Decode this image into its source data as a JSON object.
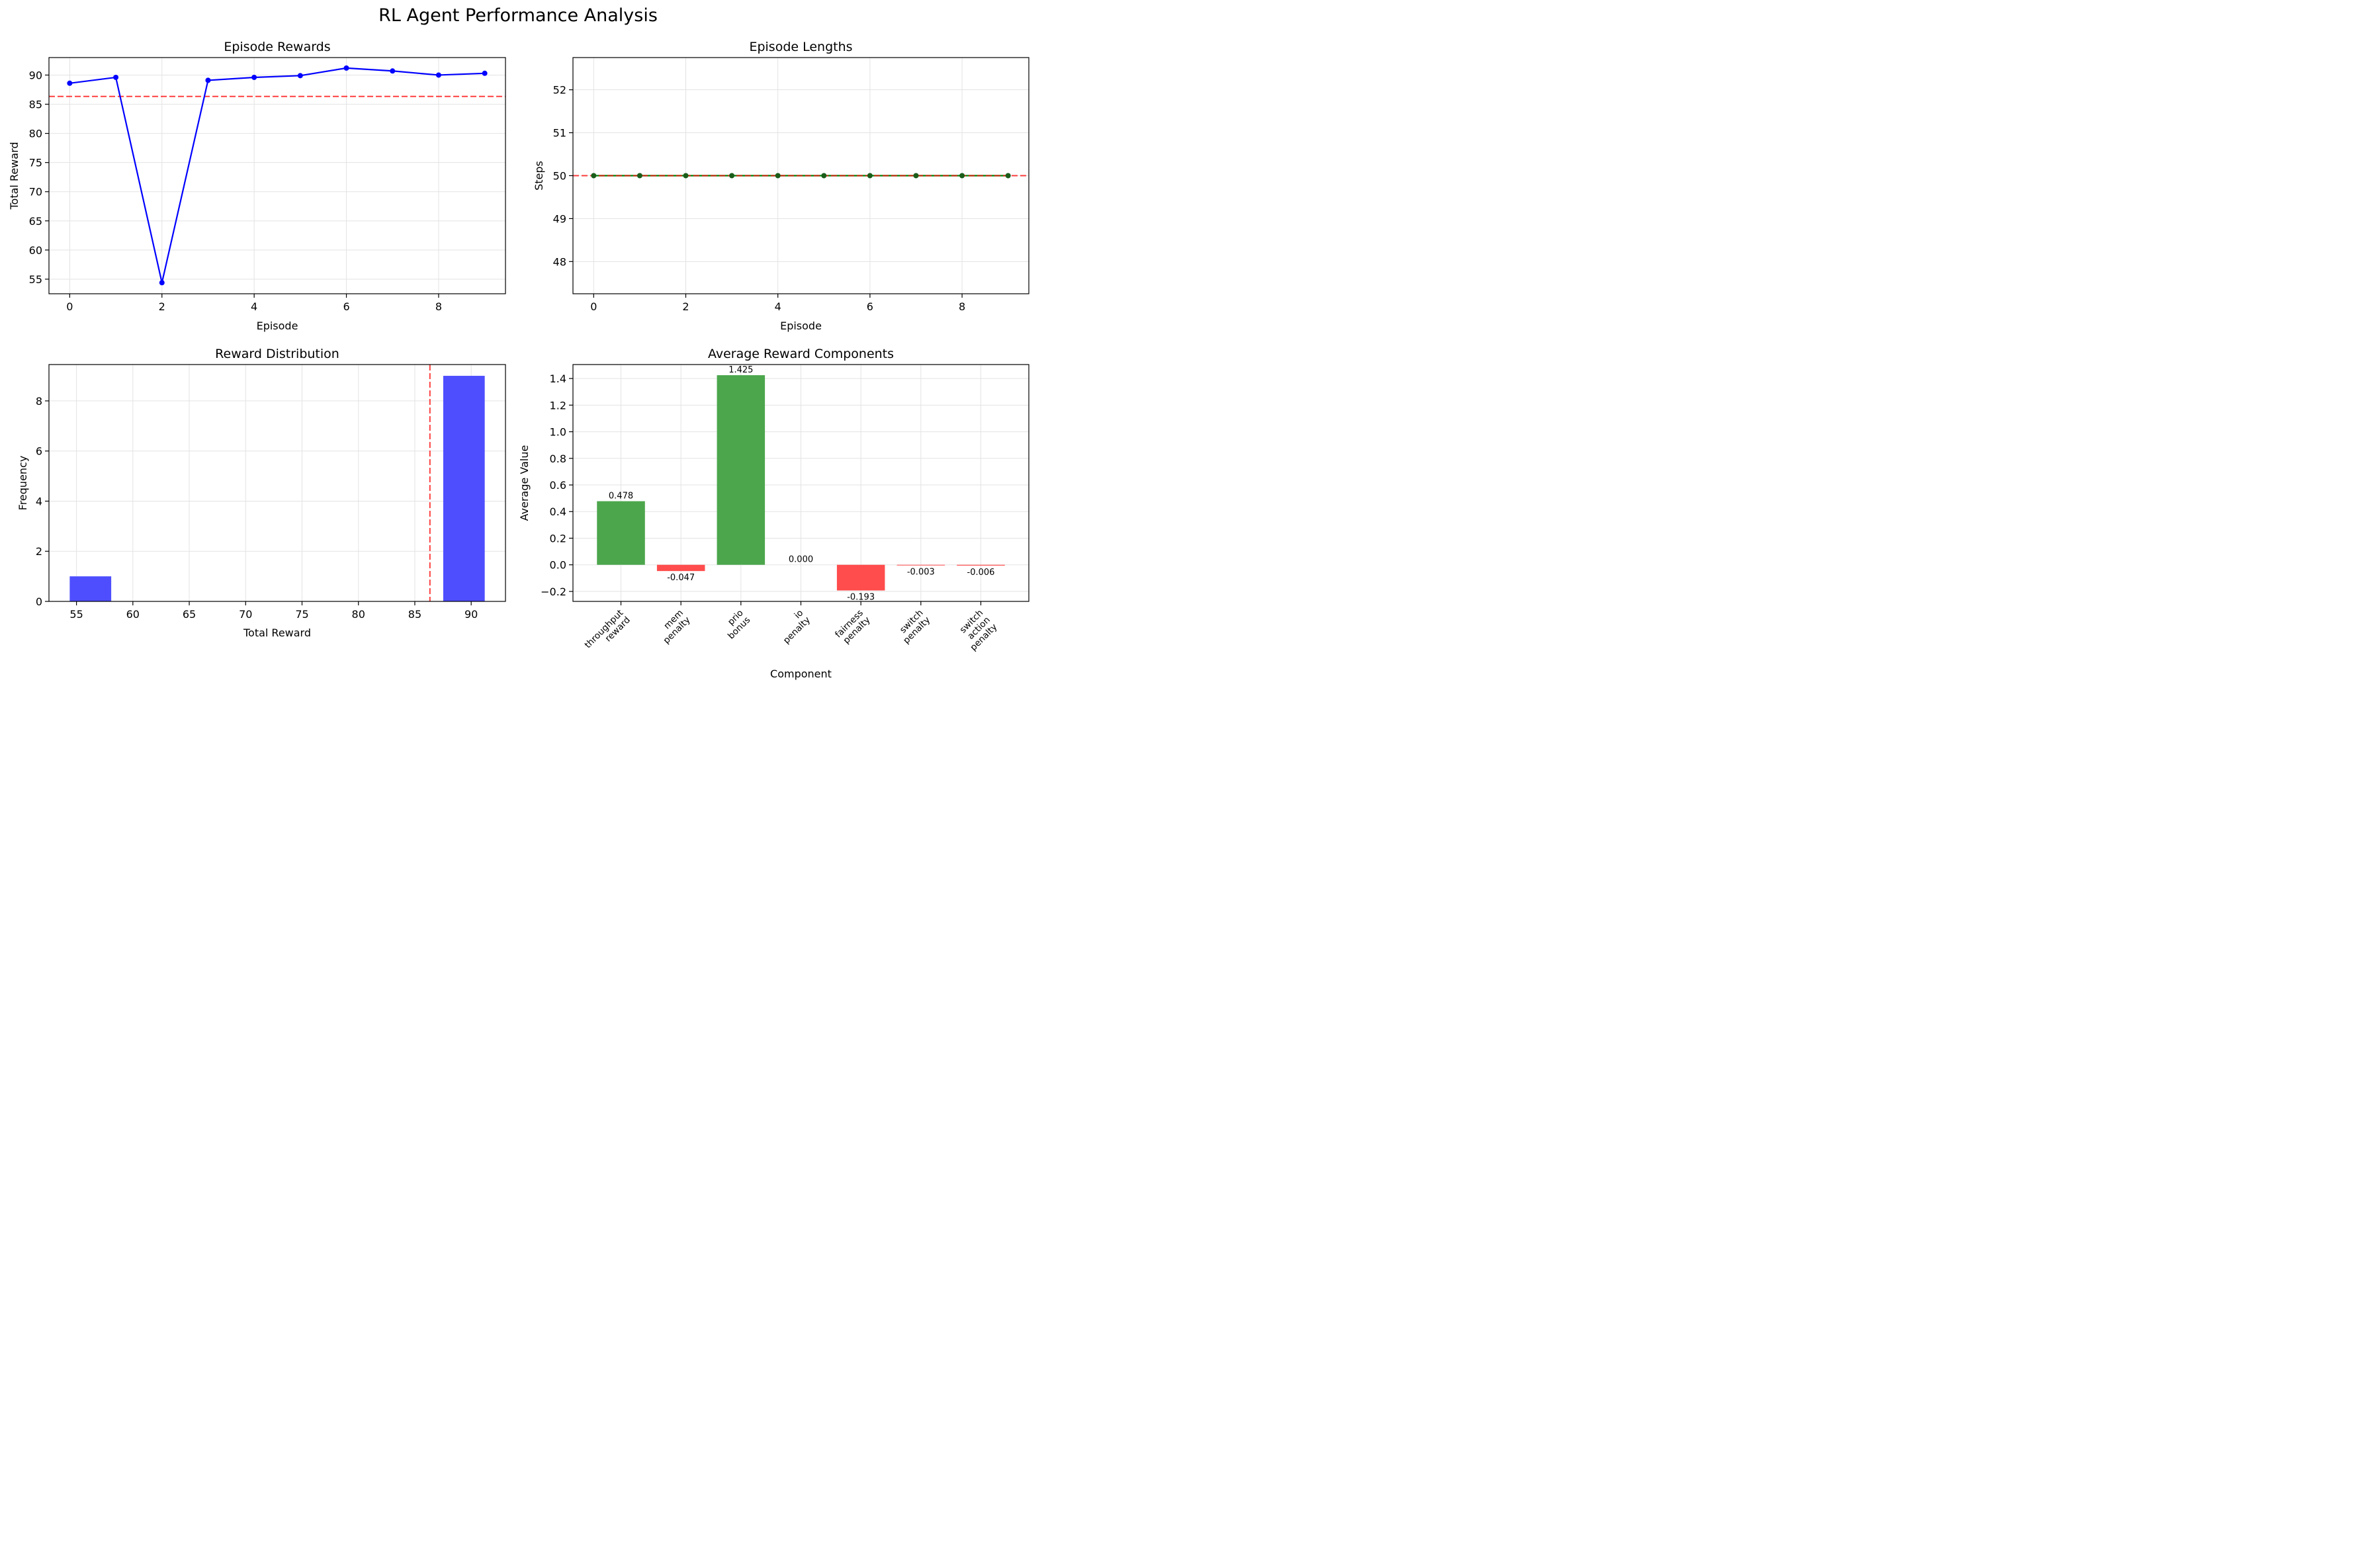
{
  "suptitle": "RL Agent Performance Analysis",
  "colors": {
    "rewards_line": "#0000ff",
    "reference_line": "#ff0000",
    "lengths_line": "#008000",
    "lengths_marker": "#1a5d1a",
    "hist_bar": "#4a4aff",
    "positive_bar": "#4ca64c",
    "negative_bar": "#ff4c4c",
    "grid": "#e3e3e3"
  },
  "chart_data": [
    {
      "type": "line",
      "title": "Episode Rewards",
      "xlabel": "Episode",
      "ylabel": "Total Reward",
      "x": [
        0,
        1,
        2,
        3,
        4,
        5,
        6,
        7,
        8,
        9
      ],
      "y": [
        88.6,
        89.6,
        54.4,
        89.1,
        89.6,
        89.9,
        91.2,
        90.7,
        90.0,
        90.3
      ],
      "reference_line": {
        "y": 86.34,
        "style": "dashed"
      },
      "xlim": [
        -0.45,
        9.45
      ],
      "ylim": [
        52.5,
        93.0
      ],
      "xticks": [
        0,
        2,
        4,
        6,
        8
      ],
      "yticks": [
        55,
        60,
        65,
        70,
        75,
        80,
        85,
        90
      ],
      "grid": true
    },
    {
      "type": "line",
      "title": "Episode Lengths",
      "xlabel": "Episode",
      "ylabel": "Steps",
      "x": [
        0,
        1,
        2,
        3,
        4,
        5,
        6,
        7,
        8,
        9
      ],
      "y": [
        50,
        50,
        50,
        50,
        50,
        50,
        50,
        50,
        50,
        50
      ],
      "reference_line": {
        "y": 50,
        "style": "dashed"
      },
      "xlim": [
        -0.45,
        9.45
      ],
      "ylim": [
        47.25,
        52.75
      ],
      "xticks": [
        0,
        2,
        4,
        6,
        8
      ],
      "yticks": [
        48,
        49,
        50,
        51,
        52
      ],
      "grid": true
    },
    {
      "type": "bar",
      "title": "Reward Distribution",
      "xlabel": "Total Reward",
      "ylabel": "Frequency",
      "bins": [
        [
          54.4,
          58.08
        ],
        [
          87.52,
          91.2
        ]
      ],
      "values": [
        1,
        9
      ],
      "reference_line": {
        "x": 86.34,
        "style": "dashed"
      },
      "xlim": [
        52.56,
        93.04
      ],
      "ylim": [
        0,
        9.45
      ],
      "xticks": [
        55,
        60,
        65,
        70,
        75,
        80,
        85,
        90
      ],
      "yticks": [
        0,
        2,
        4,
        6,
        8
      ],
      "grid": true
    },
    {
      "type": "bar",
      "title": "Average Reward Components",
      "xlabel": "Component",
      "ylabel": "Average Value",
      "categories": [
        "throughput\nreward",
        "mem\npenalty",
        "prio\nbonus",
        "io\npenalty",
        "fairness\npenalty",
        "switch\npenalty",
        "switch\naction\npenalty"
      ],
      "values": [
        0.478,
        -0.047,
        1.425,
        0.0,
        -0.193,
        -0.003,
        -0.006
      ],
      "data_labels": [
        "0.478",
        "-0.047",
        "1.425",
        "0.000",
        "-0.193",
        "-0.003",
        "-0.006"
      ],
      "xlim": [
        -0.8,
        6.8
      ],
      "ylim": [
        -0.275,
        1.505
      ],
      "yticks": [
        -0.2,
        0.0,
        0.2,
        0.4,
        0.6,
        0.8,
        1.0,
        1.2,
        1.4
      ],
      "ytick_labels": [
        "−0.2",
        "0.0",
        "0.2",
        "0.4",
        "0.6",
        "0.8",
        "1.0",
        "1.2",
        "1.4"
      ],
      "grid": true
    }
  ]
}
